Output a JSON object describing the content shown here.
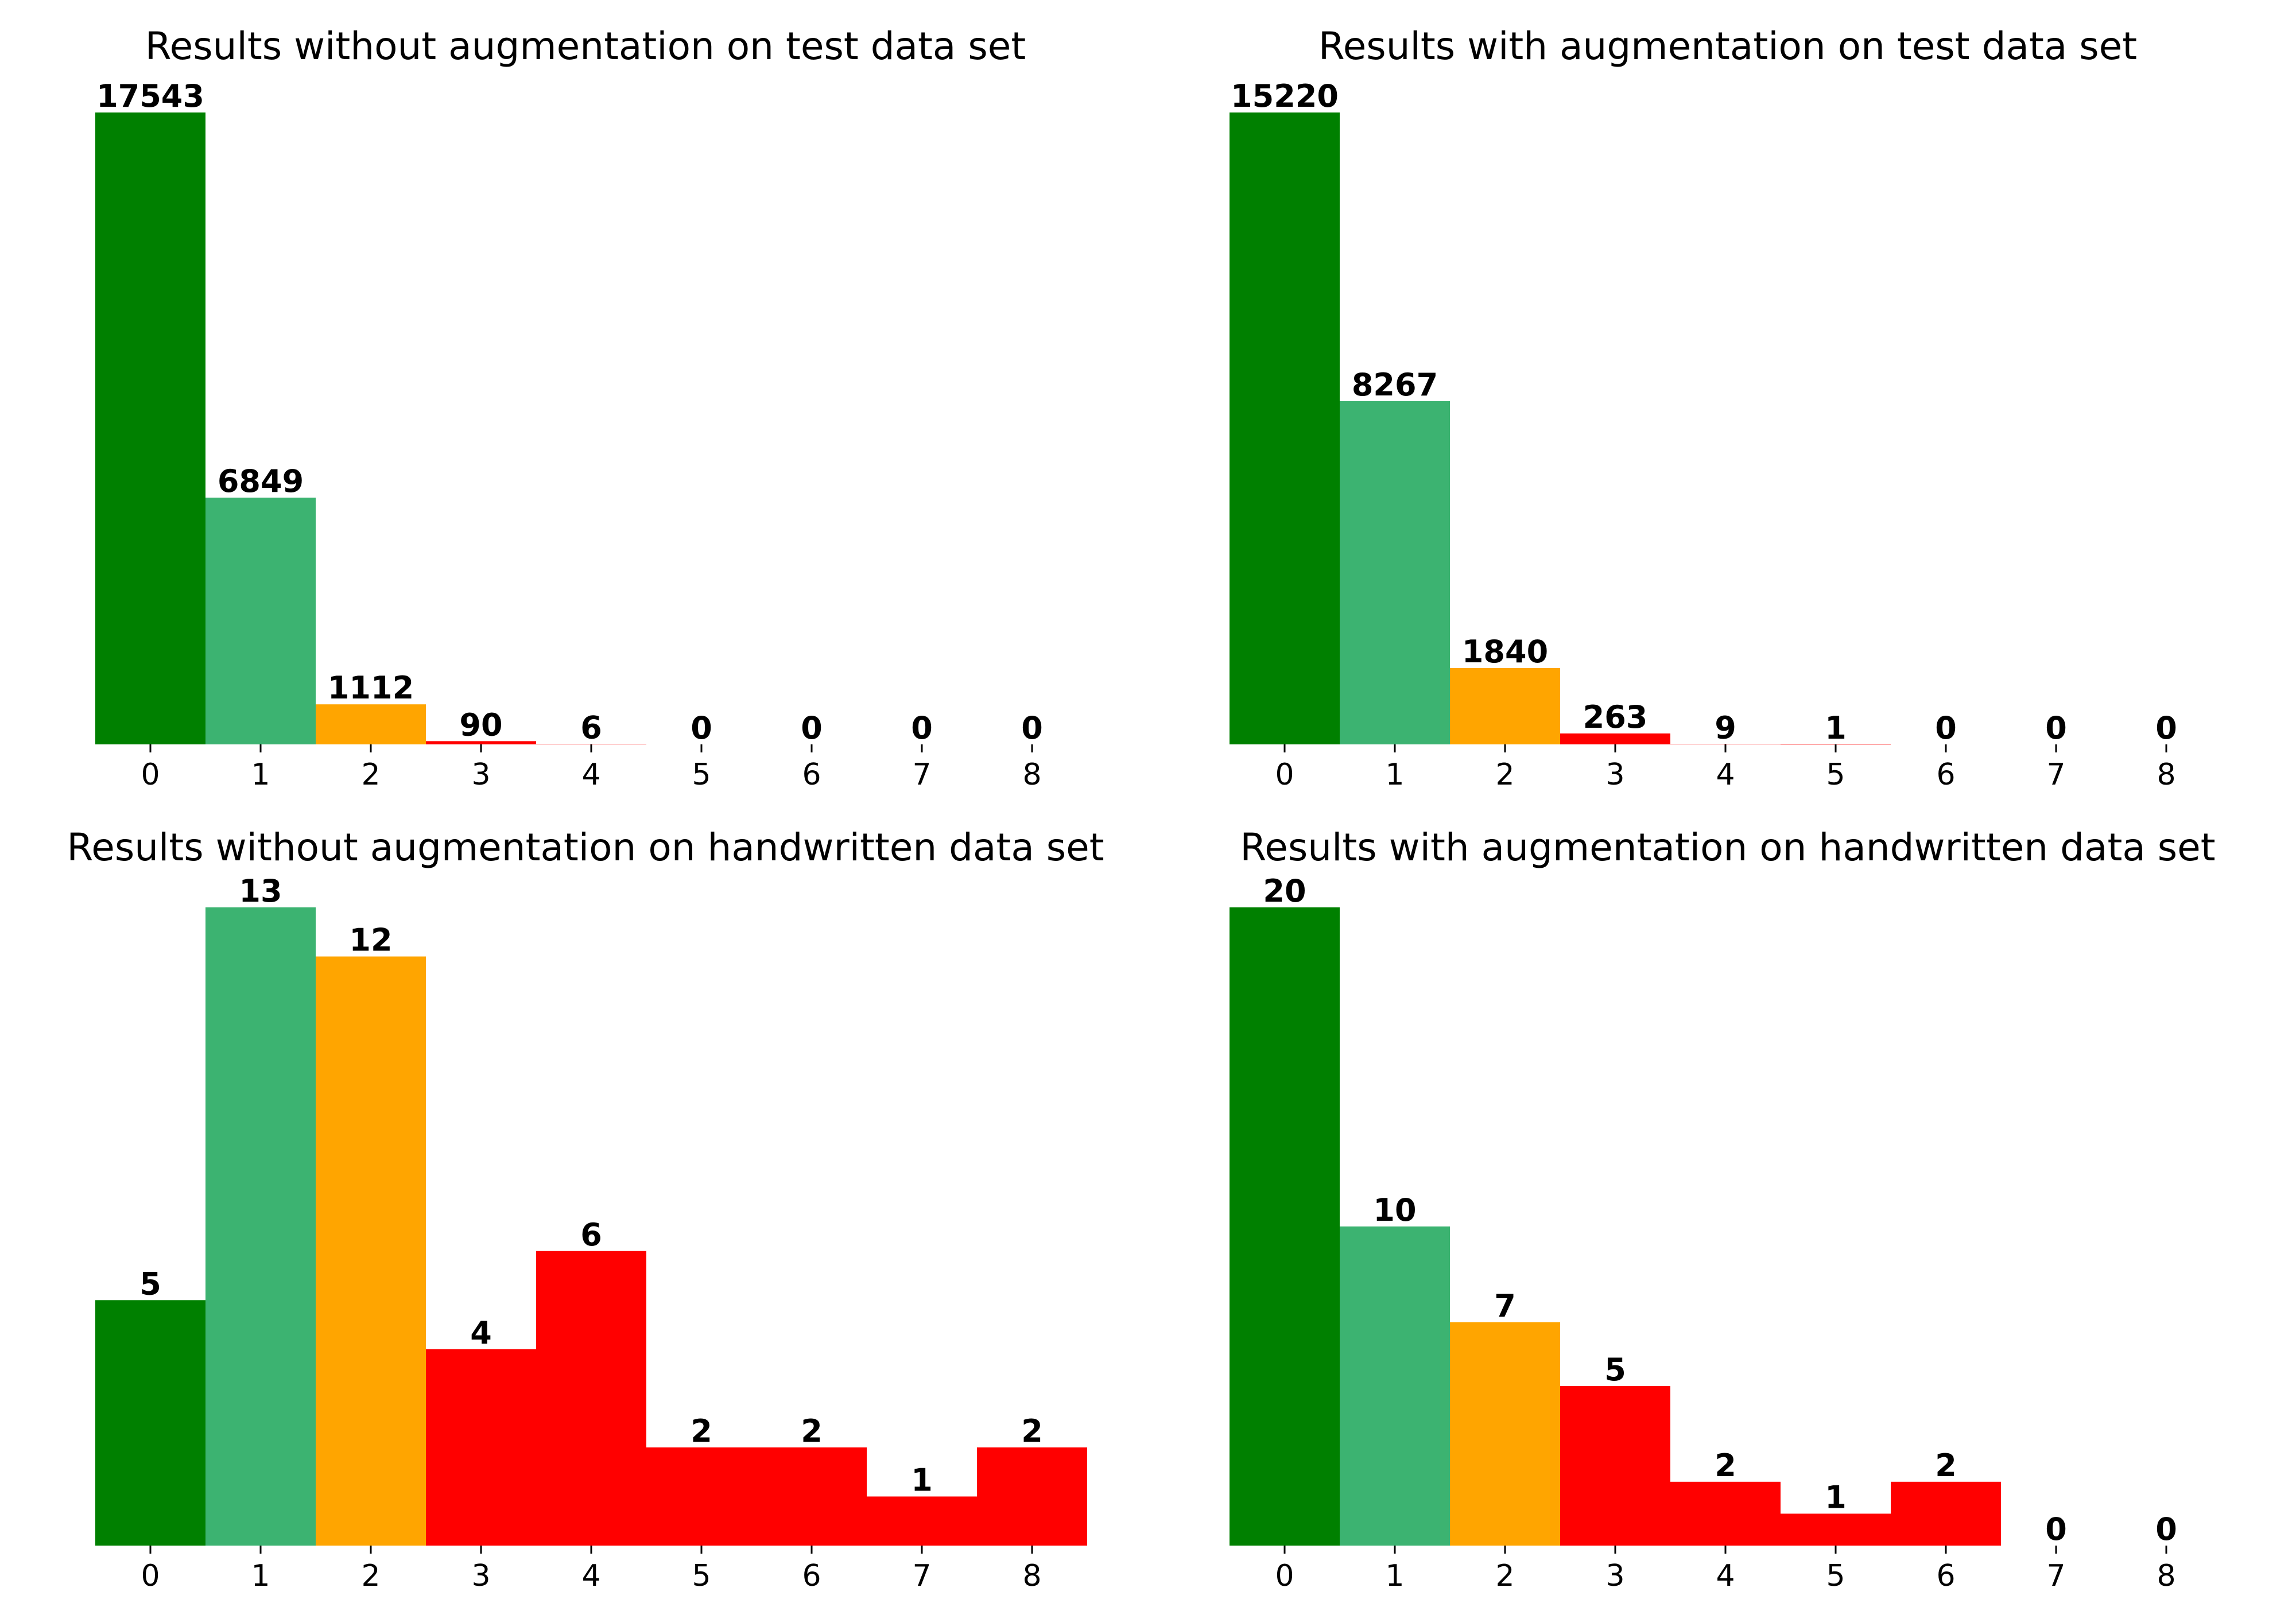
{
  "chart_data": [
    {
      "type": "bar",
      "title": "Results without augmentation on test data set",
      "categories": [
        "0",
        "1",
        "2",
        "3",
        "4",
        "5",
        "6",
        "7",
        "8"
      ],
      "values": [
        17543,
        6849,
        1112,
        90,
        6,
        0,
        0,
        0,
        0
      ],
      "ylim": [
        0,
        17543
      ],
      "bar_colors": [
        "#008000",
        "#3cb371",
        "#ffa500",
        "#ff0000",
        "#ff0000",
        "#ff0000",
        "#ff0000",
        "#ff0000",
        "#ff0000"
      ],
      "data_labels": true,
      "grid": false,
      "legend": "none",
      "xlabel": "",
      "ylabel": ""
    },
    {
      "type": "bar",
      "title": "Results with augmentation on test data set",
      "categories": [
        "0",
        "1",
        "2",
        "3",
        "4",
        "5",
        "6",
        "7",
        "8"
      ],
      "values": [
        15220,
        8267,
        1840,
        263,
        9,
        1,
        0,
        0,
        0
      ],
      "ylim": [
        0,
        15220
      ],
      "bar_colors": [
        "#008000",
        "#3cb371",
        "#ffa500",
        "#ff0000",
        "#ff0000",
        "#ff0000",
        "#ff0000",
        "#ff0000",
        "#ff0000"
      ],
      "data_labels": true,
      "grid": false,
      "legend": "none",
      "xlabel": "",
      "ylabel": ""
    },
    {
      "type": "bar",
      "title": "Results without augmentation on handwritten data set",
      "categories": [
        "0",
        "1",
        "2",
        "3",
        "4",
        "5",
        "6",
        "7",
        "8"
      ],
      "values": [
        5,
        13,
        12,
        4,
        6,
        2,
        2,
        1,
        2
      ],
      "ylim": [
        0,
        13
      ],
      "bar_colors": [
        "#008000",
        "#3cb371",
        "#ffa500",
        "#ff0000",
        "#ff0000",
        "#ff0000",
        "#ff0000",
        "#ff0000",
        "#ff0000"
      ],
      "data_labels": true,
      "grid": false,
      "legend": "none",
      "xlabel": "",
      "ylabel": ""
    },
    {
      "type": "bar",
      "title": "Results with augmentation on handwritten data set",
      "categories": [
        "0",
        "1",
        "2",
        "3",
        "4",
        "5",
        "6",
        "7",
        "8"
      ],
      "values": [
        20,
        10,
        7,
        5,
        2,
        1,
        2,
        0,
        0
      ],
      "ylim": [
        0,
        20
      ],
      "bar_colors": [
        "#008000",
        "#3cb371",
        "#ffa500",
        "#ff0000",
        "#ff0000",
        "#ff0000",
        "#ff0000",
        "#ff0000",
        "#ff0000"
      ],
      "data_labels": true,
      "grid": false,
      "legend": "none",
      "xlabel": "",
      "ylabel": ""
    }
  ]
}
